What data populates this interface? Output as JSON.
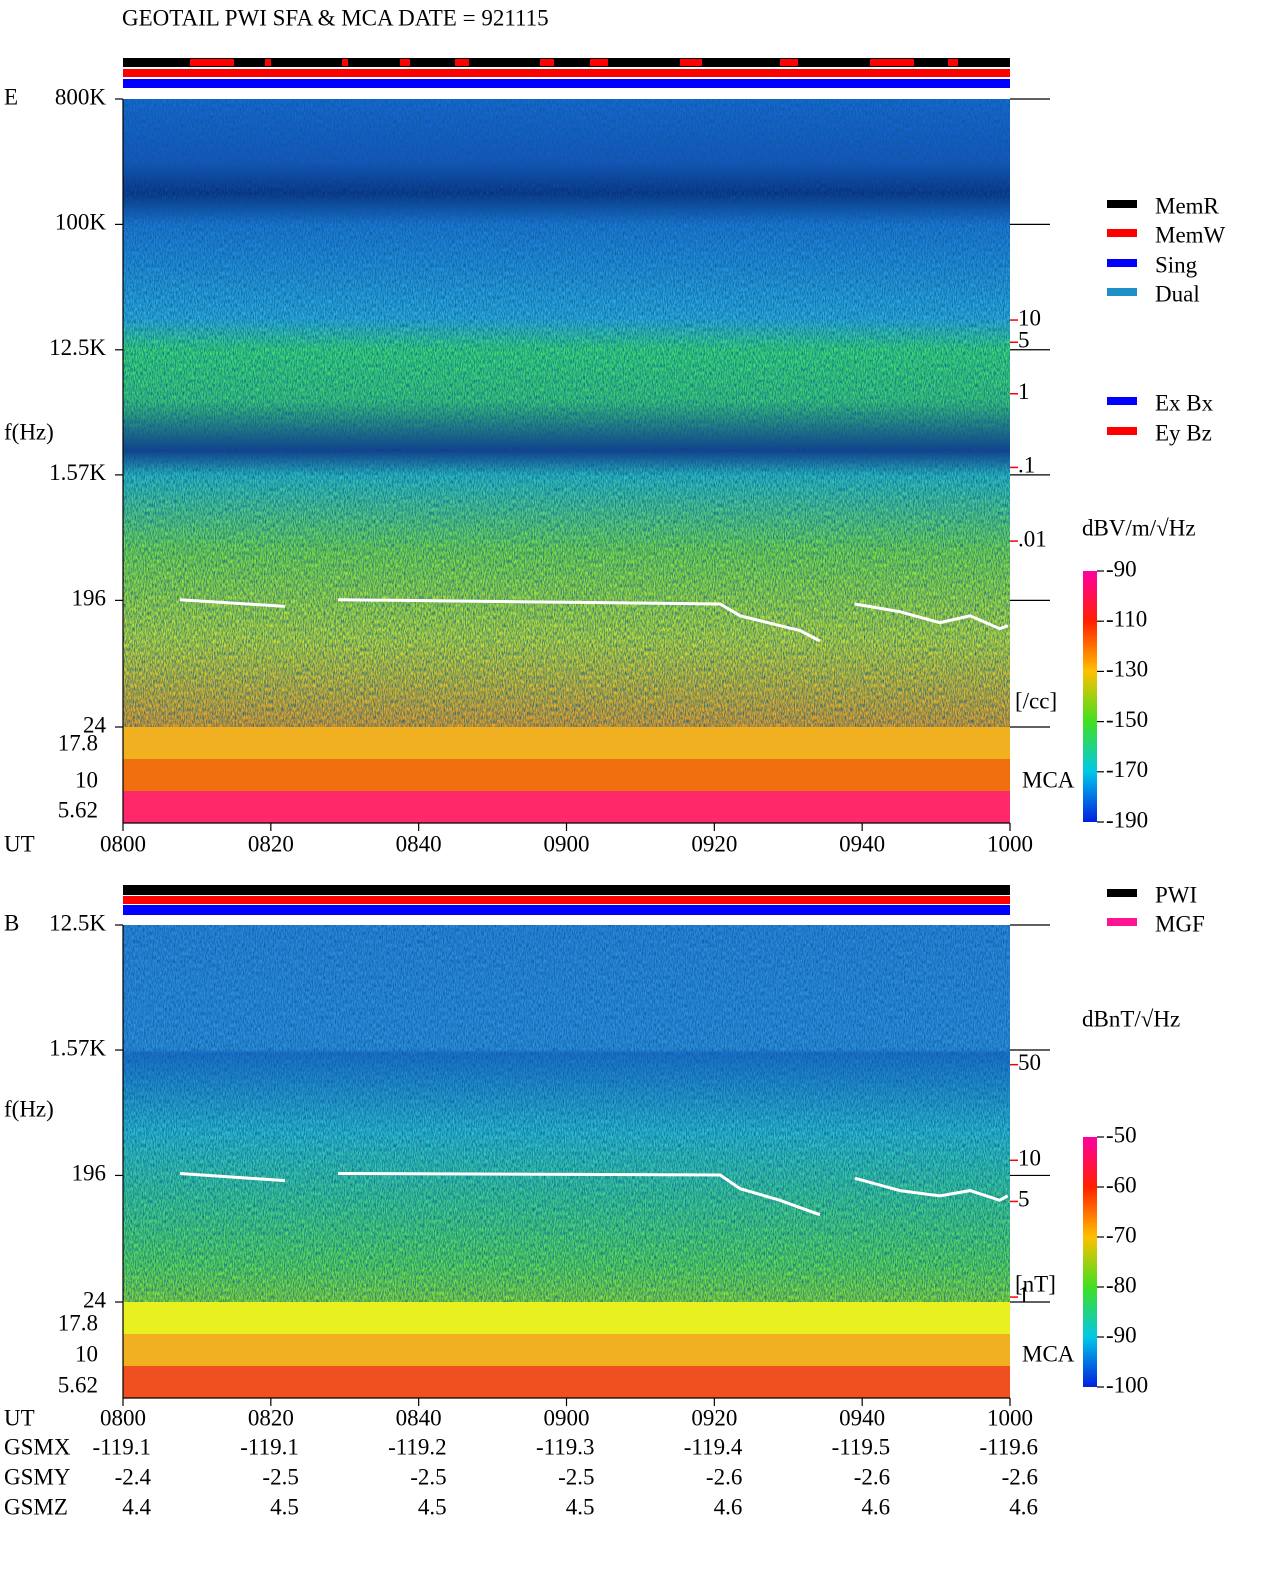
{
  "chart_data": [
    {
      "type": "spectrogram",
      "title": "GEOTAIL  PWI SFA & MCA   DATE = 921115",
      "panel_label": "E",
      "ylabel": "f(Hz)",
      "xlabel": "UT",
      "mca_label": "MCA",
      "y2label": "[/cc]",
      "log_scale": true,
      "xlim": [
        480,
        600
      ],
      "xticks": [
        {
          "value": 480,
          "label": "0800"
        },
        {
          "value": 500,
          "label": "0820"
        },
        {
          "value": 520,
          "label": "0840"
        },
        {
          "value": 540,
          "label": "0900"
        },
        {
          "value": 560,
          "label": "0920"
        },
        {
          "value": 580,
          "label": "0940"
        },
        {
          "value": 600,
          "label": "1000"
        }
      ],
      "ylim": [
        800000,
        24
      ],
      "yticks": [
        {
          "value": 800000,
          "label": "800K"
        },
        {
          "value": 100000,
          "label": "100K"
        },
        {
          "value": 12500,
          "label": "12.5K"
        },
        {
          "value": 1570,
          "label": "1.57K"
        },
        196,
        24
      ],
      "mca_channels": [
        17.8,
        10,
        5.62
      ],
      "y2lim": [
        10000,
        3e-05
      ],
      "y2ticks": [
        10,
        5,
        1,
        {
          "value": 0.1,
          "label": ".1"
        },
        {
          "value": 0.01,
          "label": ".01"
        }
      ],
      "y2color": "#ff0000",
      "series": [
        {
          "color": "#ffffff",
          "axis": "y2",
          "x": [
            487.7,
            501.9,
            null,
            509.1,
            560.8,
            563.5,
            568.9,
            571.6,
            574.3,
            null,
            579,
            585.1,
            590.5,
            594.6,
            598.6,
            599.7
          ],
          "values": [
            0.0016,
            0.0013,
            null,
            0.0016,
            0.0014,
            0.00097,
            0.00071,
            0.00061,
            0.00044,
            null,
            0.0014,
            0.0011,
            0.00078,
            0.00097,
            0.00065,
            0.00071
          ]
        }
      ],
      "status_legend": [
        {
          "name": "MemR",
          "color": "#000000"
        },
        {
          "name": "MemW",
          "color": "#ff0000"
        },
        {
          "name": "Sing",
          "color": "#0000ff"
        },
        {
          "name": "Dual",
          "color": "#1e90c8"
        }
      ],
      "antenna_legend": [
        {
          "name": "Ex Bx",
          "color": "#0000ff"
        },
        {
          "name": "Ey Bz",
          "color": "#ff0000"
        }
      ],
      "colorbar": {
        "label": "dBV/m/√Hz",
        "lim": [
          -90,
          -190
        ],
        "ticks": [
          -90,
          -110,
          -130,
          -150,
          -170,
          -190
        ]
      }
    },
    {
      "type": "spectrogram",
      "panel_label": "B",
      "ylabel": "f(Hz)",
      "xlabel": "UT",
      "mca_label": "MCA",
      "y2label": "[nT]",
      "log_scale": true,
      "xlim": [
        480,
        600
      ],
      "xticks": [
        {
          "value": 480,
          "label": "0800"
        },
        {
          "value": 500,
          "label": "0820"
        },
        {
          "value": 520,
          "label": "0840"
        },
        {
          "value": 540,
          "label": "0900"
        },
        {
          "value": 560,
          "label": "0920"
        },
        {
          "value": 580,
          "label": "0940"
        },
        {
          "value": 600,
          "label": "1000"
        }
      ],
      "ylim": [
        12500,
        24
      ],
      "yticks": [
        {
          "value": 12500,
          "label": "12.5K"
        },
        {
          "value": 1570,
          "label": "1.57K"
        },
        196,
        24
      ],
      "mca_channels": [
        17.8,
        10,
        5.62
      ],
      "y2lim": [
        525,
        0.92
      ],
      "y2ticks": [
        50,
        10,
        5,
        1
      ],
      "y2color": "#ff0000",
      "series": [
        {
          "color": "#ffffff",
          "axis": "y2",
          "x": [
            487.7,
            501.9,
            null,
            509.1,
            560.8,
            563.5,
            568.9,
            571.6,
            574.3,
            null,
            579,
            585.1,
            590.5,
            594.6,
            598.6,
            599.7
          ],
          "values": [
            8.0,
            7.1,
            null,
            8.0,
            7.8,
            6.2,
            5.1,
            4.5,
            4.0,
            null,
            7.4,
            6.0,
            5.5,
            6.0,
            5.1,
            5.5
          ]
        }
      ],
      "status_legend": [
        {
          "name": "PWI",
          "color": "#000000"
        },
        {
          "name": "MGF",
          "color": "#ff1493"
        }
      ],
      "colorbar": {
        "label": "dBnT/√Hz",
        "lim": [
          -50,
          -100
        ],
        "ticks": [
          -50,
          -60,
          -70,
          -80,
          -90,
          -100
        ]
      }
    }
  ],
  "orbit": [
    {
      "label": "GSMX",
      "values": [
        -119.1,
        -119.1,
        -119.2,
        -119.3,
        -119.4,
        -119.5,
        -119.6
      ]
    },
    {
      "label": "GSMY",
      "values": [
        -2.4,
        -2.5,
        -2.5,
        -2.5,
        -2.6,
        -2.6,
        -2.6
      ]
    },
    {
      "label": "GSMZ",
      "values": [
        4.4,
        4.5,
        4.5,
        4.5,
        4.6,
        4.6,
        4.6
      ]
    }
  ]
}
